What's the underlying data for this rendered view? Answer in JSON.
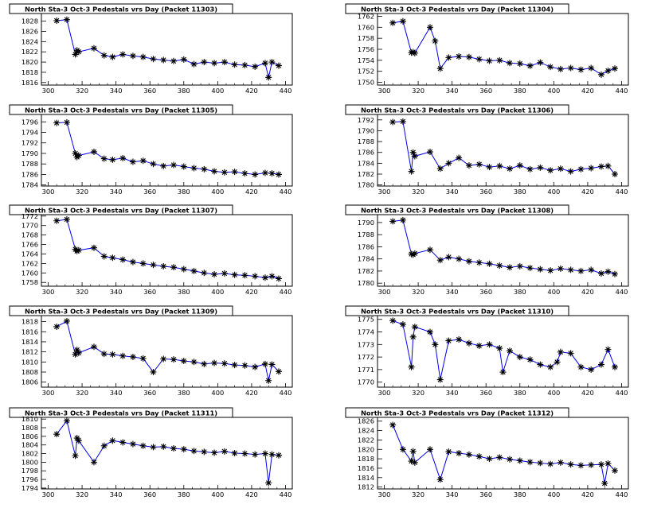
{
  "chart_data": [
    {
      "type": "line",
      "title": "North Sta-3 Oct-3 Pedestals vrs Day (Packet 11303)",
      "xlim": [
        296,
        444
      ],
      "ylim": [
        1815.5,
        1829.5
      ],
      "xticks": [
        300,
        320,
        340,
        360,
        380,
        400,
        420,
        440
      ],
      "yticks": [
        1816,
        1818,
        1820,
        1822,
        1824,
        1826,
        1828
      ],
      "x": [
        305,
        311,
        316,
        317,
        318,
        327,
        333,
        338,
        344,
        350,
        356,
        362,
        368,
        374,
        380,
        386,
        392,
        398,
        404,
        410,
        416,
        422,
        428,
        430,
        432,
        436
      ],
      "y": [
        1828.1,
        1828.3,
        1821.5,
        1822.3,
        1822.0,
        1822.7,
        1821.3,
        1821.0,
        1821.5,
        1821.2,
        1821.0,
        1820.6,
        1820.4,
        1820.2,
        1820.5,
        1819.6,
        1820.0,
        1819.8,
        1820.0,
        1819.5,
        1819.4,
        1819.1,
        1819.8,
        1817.0,
        1820.0,
        1819.3
      ]
    },
    {
      "type": "line",
      "title": "North Sta-3 Oct-3 Pedestals vrs Day (Packet 11304)",
      "xlim": [
        296,
        444
      ],
      "ylim": [
        1749.5,
        1762.5
      ],
      "xticks": [
        300,
        320,
        340,
        360,
        380,
        400,
        420,
        440
      ],
      "yticks": [
        1750,
        1752,
        1754,
        1756,
        1758,
        1760,
        1762
      ],
      "x": [
        305,
        311,
        316,
        317,
        318,
        327,
        330,
        333,
        338,
        344,
        350,
        356,
        362,
        368,
        374,
        380,
        386,
        392,
        398,
        404,
        410,
        416,
        422,
        428,
        432,
        436
      ],
      "y": [
        1760.8,
        1761.1,
        1755.4,
        1755.5,
        1755.3,
        1760.0,
        1757.5,
        1752.5,
        1754.5,
        1754.7,
        1754.6,
        1754.2,
        1753.9,
        1754.0,
        1753.5,
        1753.4,
        1753.0,
        1753.6,
        1752.8,
        1752.4,
        1752.6,
        1752.3,
        1752.6,
        1751.4,
        1752.1,
        1752.5
      ]
    },
    {
      "type": "line",
      "title": "North Sta-3 Oct-3 Pedestals vrs Day (Packet 11305)",
      "xlim": [
        296,
        444
      ],
      "ylim": [
        1783.8,
        1797.4
      ],
      "xticks": [
        300,
        320,
        340,
        360,
        380,
        400,
        420,
        440
      ],
      "yticks": [
        1784,
        1786,
        1788,
        1790,
        1792,
        1794,
        1796
      ],
      "x": [
        305,
        311,
        316,
        317,
        318,
        327,
        333,
        338,
        344,
        350,
        356,
        362,
        368,
        374,
        380,
        386,
        392,
        398,
        404,
        410,
        416,
        422,
        428,
        432,
        436
      ],
      "y": [
        1795.8,
        1795.9,
        1790.0,
        1789.3,
        1789.6,
        1790.3,
        1789.0,
        1788.8,
        1789.1,
        1788.4,
        1788.6,
        1788.0,
        1787.6,
        1787.8,
        1787.5,
        1787.2,
        1787.0,
        1786.6,
        1786.4,
        1786.5,
        1786.2,
        1786.0,
        1786.3,
        1786.2,
        1786.0
      ]
    },
    {
      "type": "line",
      "title": "North Sta-3 Oct-3 Pedestals vrs Day (Packet 11306)",
      "xlim": [
        296,
        444
      ],
      "ylim": [
        1779.8,
        1793.0
      ],
      "xticks": [
        300,
        320,
        340,
        360,
        380,
        400,
        420,
        440
      ],
      "yticks": [
        1780,
        1782,
        1784,
        1786,
        1788,
        1790,
        1792
      ],
      "x": [
        305,
        311,
        316,
        317,
        318,
        327,
        333,
        338,
        344,
        350,
        356,
        362,
        368,
        374,
        380,
        386,
        392,
        398,
        404,
        410,
        416,
        422,
        428,
        432,
        436
      ],
      "y": [
        1791.6,
        1791.7,
        1782.5,
        1786.0,
        1785.3,
        1786.1,
        1783.0,
        1784.0,
        1785.0,
        1783.6,
        1783.8,
        1783.3,
        1783.5,
        1783.0,
        1783.6,
        1782.9,
        1783.2,
        1782.7,
        1783.0,
        1782.5,
        1782.9,
        1783.1,
        1783.4,
        1783.5,
        1782.0
      ]
    },
    {
      "type": "line",
      "title": "North Sta-3 Oct-3 Pedestals vrs Day (Packet 11307)",
      "xlim": [
        296,
        444
      ],
      "ylim": [
        1757.2,
        1772.3
      ],
      "xticks": [
        300,
        320,
        340,
        360,
        380,
        400,
        420,
        440
      ],
      "yticks": [
        1758,
        1760,
        1762,
        1764,
        1766,
        1768,
        1770,
        1772
      ],
      "x": [
        305,
        311,
        316,
        317,
        318,
        327,
        333,
        338,
        344,
        350,
        356,
        362,
        368,
        374,
        380,
        386,
        392,
        398,
        404,
        410,
        416,
        422,
        428,
        432,
        436
      ],
      "y": [
        1771.0,
        1771.3,
        1765.0,
        1764.6,
        1764.8,
        1765.3,
        1763.5,
        1763.2,
        1762.8,
        1762.3,
        1762.0,
        1761.7,
        1761.4,
        1761.2,
        1760.8,
        1760.4,
        1760.0,
        1759.7,
        1759.9,
        1759.6,
        1759.5,
        1759.3,
        1759.0,
        1759.3,
        1758.8
      ]
    },
    {
      "type": "line",
      "title": "North Sta-3 Oct-3 Pedestals vrs Day (Packet 11308)",
      "xlim": [
        296,
        444
      ],
      "ylim": [
        1779.5,
        1791.3
      ],
      "xticks": [
        300,
        320,
        340,
        360,
        380,
        400,
        420,
        440
      ],
      "yticks": [
        1780,
        1782,
        1784,
        1786,
        1788,
        1790
      ],
      "x": [
        305,
        311,
        316,
        317,
        318,
        327,
        333,
        338,
        344,
        350,
        356,
        362,
        368,
        374,
        380,
        386,
        392,
        398,
        404,
        410,
        416,
        422,
        428,
        432,
        436
      ],
      "y": [
        1790.2,
        1790.4,
        1784.8,
        1784.7,
        1784.9,
        1785.5,
        1783.8,
        1784.3,
        1784.0,
        1783.6,
        1783.4,
        1783.2,
        1782.9,
        1782.6,
        1782.8,
        1782.5,
        1782.3,
        1782.1,
        1782.4,
        1782.2,
        1782.0,
        1782.2,
        1781.6,
        1781.9,
        1781.5
      ]
    },
    {
      "type": "line",
      "title": "North Sta-3 Oct-3 Pedestals vrs Day (Packet 11309)",
      "xlim": [
        296,
        444
      ],
      "ylim": [
        1805.0,
        1819.2
      ],
      "xticks": [
        300,
        320,
        340,
        360,
        380,
        400,
        420,
        440
      ],
      "yticks": [
        1806,
        1808,
        1810,
        1812,
        1814,
        1816,
        1818
      ],
      "x": [
        305,
        311,
        316,
        317,
        318,
        327,
        333,
        338,
        344,
        350,
        356,
        362,
        368,
        374,
        380,
        386,
        392,
        398,
        404,
        410,
        416,
        422,
        428,
        430,
        432,
        436
      ],
      "y": [
        1817.0,
        1818.1,
        1811.5,
        1812.4,
        1811.8,
        1813.0,
        1811.6,
        1811.5,
        1811.2,
        1811.0,
        1810.7,
        1808.0,
        1810.6,
        1810.5,
        1810.2,
        1810.0,
        1809.6,
        1809.8,
        1809.7,
        1809.4,
        1809.3,
        1809.0,
        1809.6,
        1806.3,
        1809.5,
        1808.1
      ]
    },
    {
      "type": "line",
      "title": "North Sta-3 Oct-3 Pedestals vrs Day (Packet 11310)",
      "xlim": [
        296,
        444
      ],
      "ylim": [
        1769.6,
        1775.3
      ],
      "xticks": [
        300,
        320,
        340,
        360,
        380,
        400,
        420,
        440
      ],
      "yticks": [
        1770,
        1771,
        1772,
        1773,
        1774,
        1775
      ],
      "x": [
        305,
        311,
        316,
        317,
        318,
        327,
        330,
        333,
        338,
        344,
        350,
        356,
        362,
        368,
        370,
        374,
        380,
        386,
        392,
        398,
        402,
        404,
        410,
        416,
        422,
        428,
        432,
        436
      ],
      "y": [
        1774.9,
        1774.6,
        1771.2,
        1773.6,
        1774.4,
        1774.0,
        1773.0,
        1770.2,
        1773.3,
        1773.4,
        1773.1,
        1772.9,
        1773.0,
        1772.7,
        1770.8,
        1772.5,
        1772.0,
        1771.8,
        1771.4,
        1771.2,
        1771.6,
        1772.4,
        1772.3,
        1771.2,
        1771.0,
        1771.4,
        1772.6,
        1771.2
      ]
    },
    {
      "type": "line",
      "title": "North Sta-3 Oct-3 Pedestals vrs Day (Packet 11311)",
      "xlim": [
        296,
        444
      ],
      "ylim": [
        1793.8,
        1810.4
      ],
      "xticks": [
        300,
        320,
        340,
        360,
        380,
        400,
        420,
        440
      ],
      "yticks": [
        1794,
        1796,
        1798,
        1800,
        1802,
        1804,
        1806,
        1808,
        1810
      ],
      "x": [
        305,
        311,
        316,
        317,
        318,
        327,
        333,
        338,
        344,
        350,
        356,
        362,
        368,
        374,
        380,
        386,
        392,
        398,
        404,
        410,
        416,
        422,
        428,
        430,
        432,
        436
      ],
      "y": [
        1806.5,
        1809.6,
        1801.5,
        1805.6,
        1805.0,
        1800.0,
        1803.8,
        1805.0,
        1804.6,
        1804.2,
        1803.8,
        1803.5,
        1803.6,
        1803.2,
        1803.0,
        1802.6,
        1802.4,
        1802.2,
        1802.5,
        1802.1,
        1802.0,
        1801.8,
        1802.0,
        1795.2,
        1801.8,
        1801.6
      ]
    },
    {
      "type": "line",
      "title": "North Sta-3 Oct-3 Pedestals vrs Day (Packet 11312)",
      "xlim": [
        296,
        444
      ],
      "ylim": [
        1811.6,
        1826.8
      ],
      "xticks": [
        300,
        320,
        340,
        360,
        380,
        400,
        420,
        440
      ],
      "yticks": [
        1812,
        1814,
        1816,
        1818,
        1820,
        1822,
        1824,
        1826
      ],
      "x": [
        305,
        311,
        316,
        317,
        318,
        327,
        333,
        338,
        344,
        350,
        356,
        362,
        368,
        374,
        380,
        386,
        392,
        398,
        404,
        410,
        416,
        422,
        428,
        430,
        432,
        436
      ],
      "y": [
        1825.2,
        1820.0,
        1817.5,
        1819.6,
        1817.2,
        1820.0,
        1813.6,
        1819.5,
        1819.2,
        1818.9,
        1818.5,
        1818.0,
        1818.3,
        1817.9,
        1817.6,
        1817.3,
        1817.1,
        1816.9,
        1817.2,
        1816.8,
        1816.6,
        1816.7,
        1816.8,
        1812.8,
        1817.0,
        1815.5
      ]
    }
  ]
}
